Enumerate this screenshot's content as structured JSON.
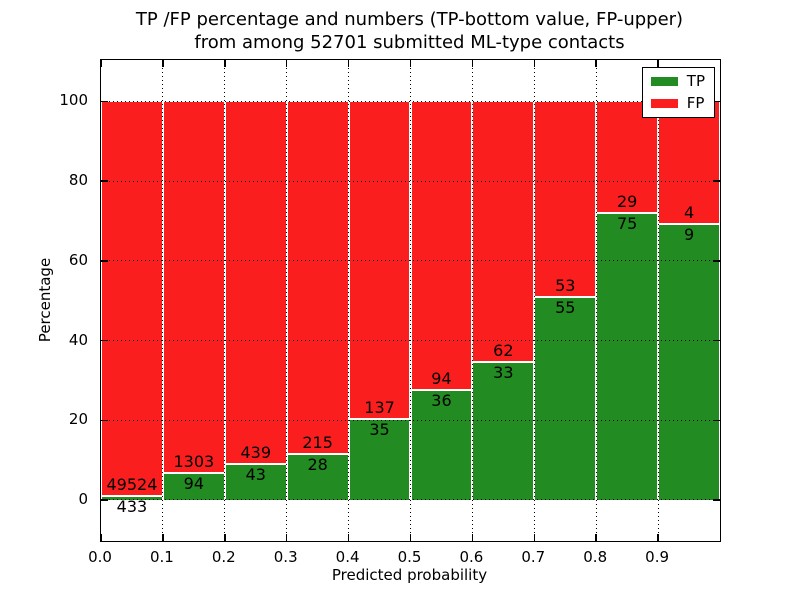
{
  "figure": {
    "title_line1": "TP /FP percentage and numbers (TP-bottom value, FP-upper)",
    "title_line2": "from among 52701 submitted ML-type contacts",
    "xlabel": "Predicted probability",
    "ylabel": "Percentage",
    "total_contacts": 52701
  },
  "legend": {
    "position": "upper right",
    "items": [
      {
        "label": "TP",
        "color": "#228b22"
      },
      {
        "label": "FP",
        "color": "#fb1e1e"
      }
    ]
  },
  "chart_data": {
    "type": "bar",
    "stacked": true,
    "normalized_to_percent": 100,
    "title": "TP /FP percentage and numbers (TP-bottom value, FP-upper) from among 52701 submitted ML-type contacts",
    "xlabel": "Predicted probability",
    "ylabel": "Percentage",
    "xlim": [
      0.0,
      1.0
    ],
    "ylim": [
      -10.3,
      110.4
    ],
    "bin_width": 0.1,
    "grid": "dotted",
    "x_tick_labels": [
      "0.0",
      "0.1",
      "0.2",
      "0.3",
      "0.4",
      "0.5",
      "0.6",
      "0.7",
      "0.8",
      "0.9"
    ],
    "y_ticks": [
      0,
      20,
      40,
      60,
      80,
      100
    ],
    "y_tick_labels": [
      "0",
      "20",
      "40",
      "60",
      "80",
      "100"
    ],
    "colors": {
      "tp": "#228b22",
      "fp": "#fb1e1e",
      "bar_edge": "#ffffff",
      "grid": "#000000"
    },
    "label_rule": "FP count printed above the TP/FP boundary, TP count printed below it",
    "bins": [
      {
        "bin_start": 0.0,
        "bin_end": 0.1,
        "tp_count": 433,
        "fp_count": 49524,
        "tp_pct": 0.87,
        "fp_pct": 99.13
      },
      {
        "bin_start": 0.1,
        "bin_end": 0.2,
        "tp_count": 94,
        "fp_count": 1303,
        "tp_pct": 6.73,
        "fp_pct": 93.27
      },
      {
        "bin_start": 0.2,
        "bin_end": 0.3,
        "tp_count": 43,
        "fp_count": 439,
        "tp_pct": 8.92,
        "fp_pct": 91.08
      },
      {
        "bin_start": 0.3,
        "bin_end": 0.4,
        "tp_count": 28,
        "fp_count": 215,
        "tp_pct": 11.52,
        "fp_pct": 88.48
      },
      {
        "bin_start": 0.4,
        "bin_end": 0.5,
        "tp_count": 35,
        "fp_count": 137,
        "tp_pct": 20.35,
        "fp_pct": 79.65
      },
      {
        "bin_start": 0.5,
        "bin_end": 0.6,
        "tp_count": 36,
        "fp_count": 94,
        "tp_pct": 27.69,
        "fp_pct": 72.31
      },
      {
        "bin_start": 0.6,
        "bin_end": 0.7,
        "tp_count": 33,
        "fp_count": 62,
        "tp_pct": 34.74,
        "fp_pct": 65.26
      },
      {
        "bin_start": 0.7,
        "bin_end": 0.8,
        "tp_count": 55,
        "fp_count": 53,
        "tp_pct": 50.93,
        "fp_pct": 49.07
      },
      {
        "bin_start": 0.8,
        "bin_end": 0.9,
        "tp_count": 75,
        "fp_count": 29,
        "tp_pct": 72.12,
        "fp_pct": 27.88
      },
      {
        "bin_start": 0.9,
        "bin_end": 1.0,
        "tp_count": 9,
        "fp_count": 4,
        "tp_pct": 69.23,
        "fp_pct": 30.77
      }
    ]
  }
}
